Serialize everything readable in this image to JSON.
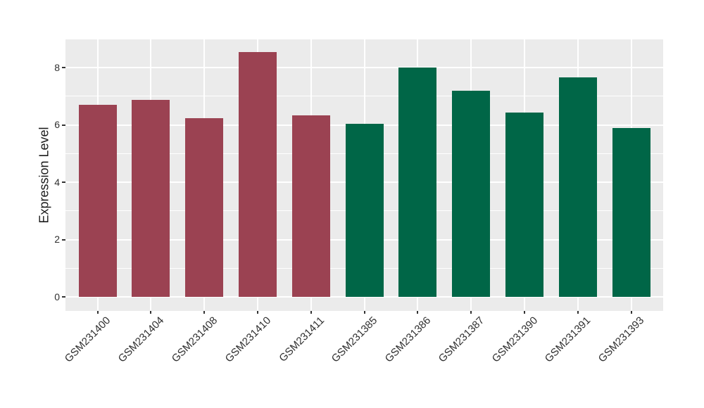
{
  "chart_data": {
    "type": "bar",
    "title": "",
    "xlabel": "",
    "ylabel": "Expression Level",
    "categories": [
      "GSM231400",
      "GSM231404",
      "GSM231408",
      "GSM231410",
      "GSM231411",
      "GSM231385",
      "GSM231386",
      "GSM231387",
      "GSM231390",
      "GSM231391",
      "GSM231393"
    ],
    "values": [
      6.71,
      6.87,
      6.23,
      8.53,
      6.32,
      6.04,
      8.01,
      7.19,
      6.44,
      7.66,
      5.89
    ],
    "bar_colors": [
      "#9B4252",
      "#9B4252",
      "#9B4252",
      "#9B4252",
      "#9B4252",
      "#006647",
      "#006647",
      "#006647",
      "#006647",
      "#006647",
      "#006647"
    ],
    "groups": [
      {
        "name": "maroon-group",
        "color": "#9B4252",
        "categories": [
          "GSM231400",
          "GSM231404",
          "GSM231408",
          "GSM231410",
          "GSM231411"
        ]
      },
      {
        "name": "green-group",
        "color": "#006647",
        "categories": [
          "GSM231385",
          "GSM231386",
          "GSM231387",
          "GSM231390",
          "GSM231391",
          "GSM231393"
        ]
      }
    ],
    "y_ticks": [
      0,
      2,
      4,
      6,
      8
    ],
    "y_minor_ticks": [
      1,
      3,
      5,
      7
    ],
    "ylim": [
      -0.49,
      8.98
    ],
    "grid": true,
    "legend": "none",
    "colors": {
      "panel_background": "#EBEBEB",
      "grid_major": "#FFFFFF",
      "grid_minor": "#FFFFFF",
      "axis_text": "#303030",
      "axis_title": "#1A1A1A",
      "tick_mark": "#333333",
      "bar_red": "#9B4252",
      "bar_green": "#006647"
    }
  }
}
